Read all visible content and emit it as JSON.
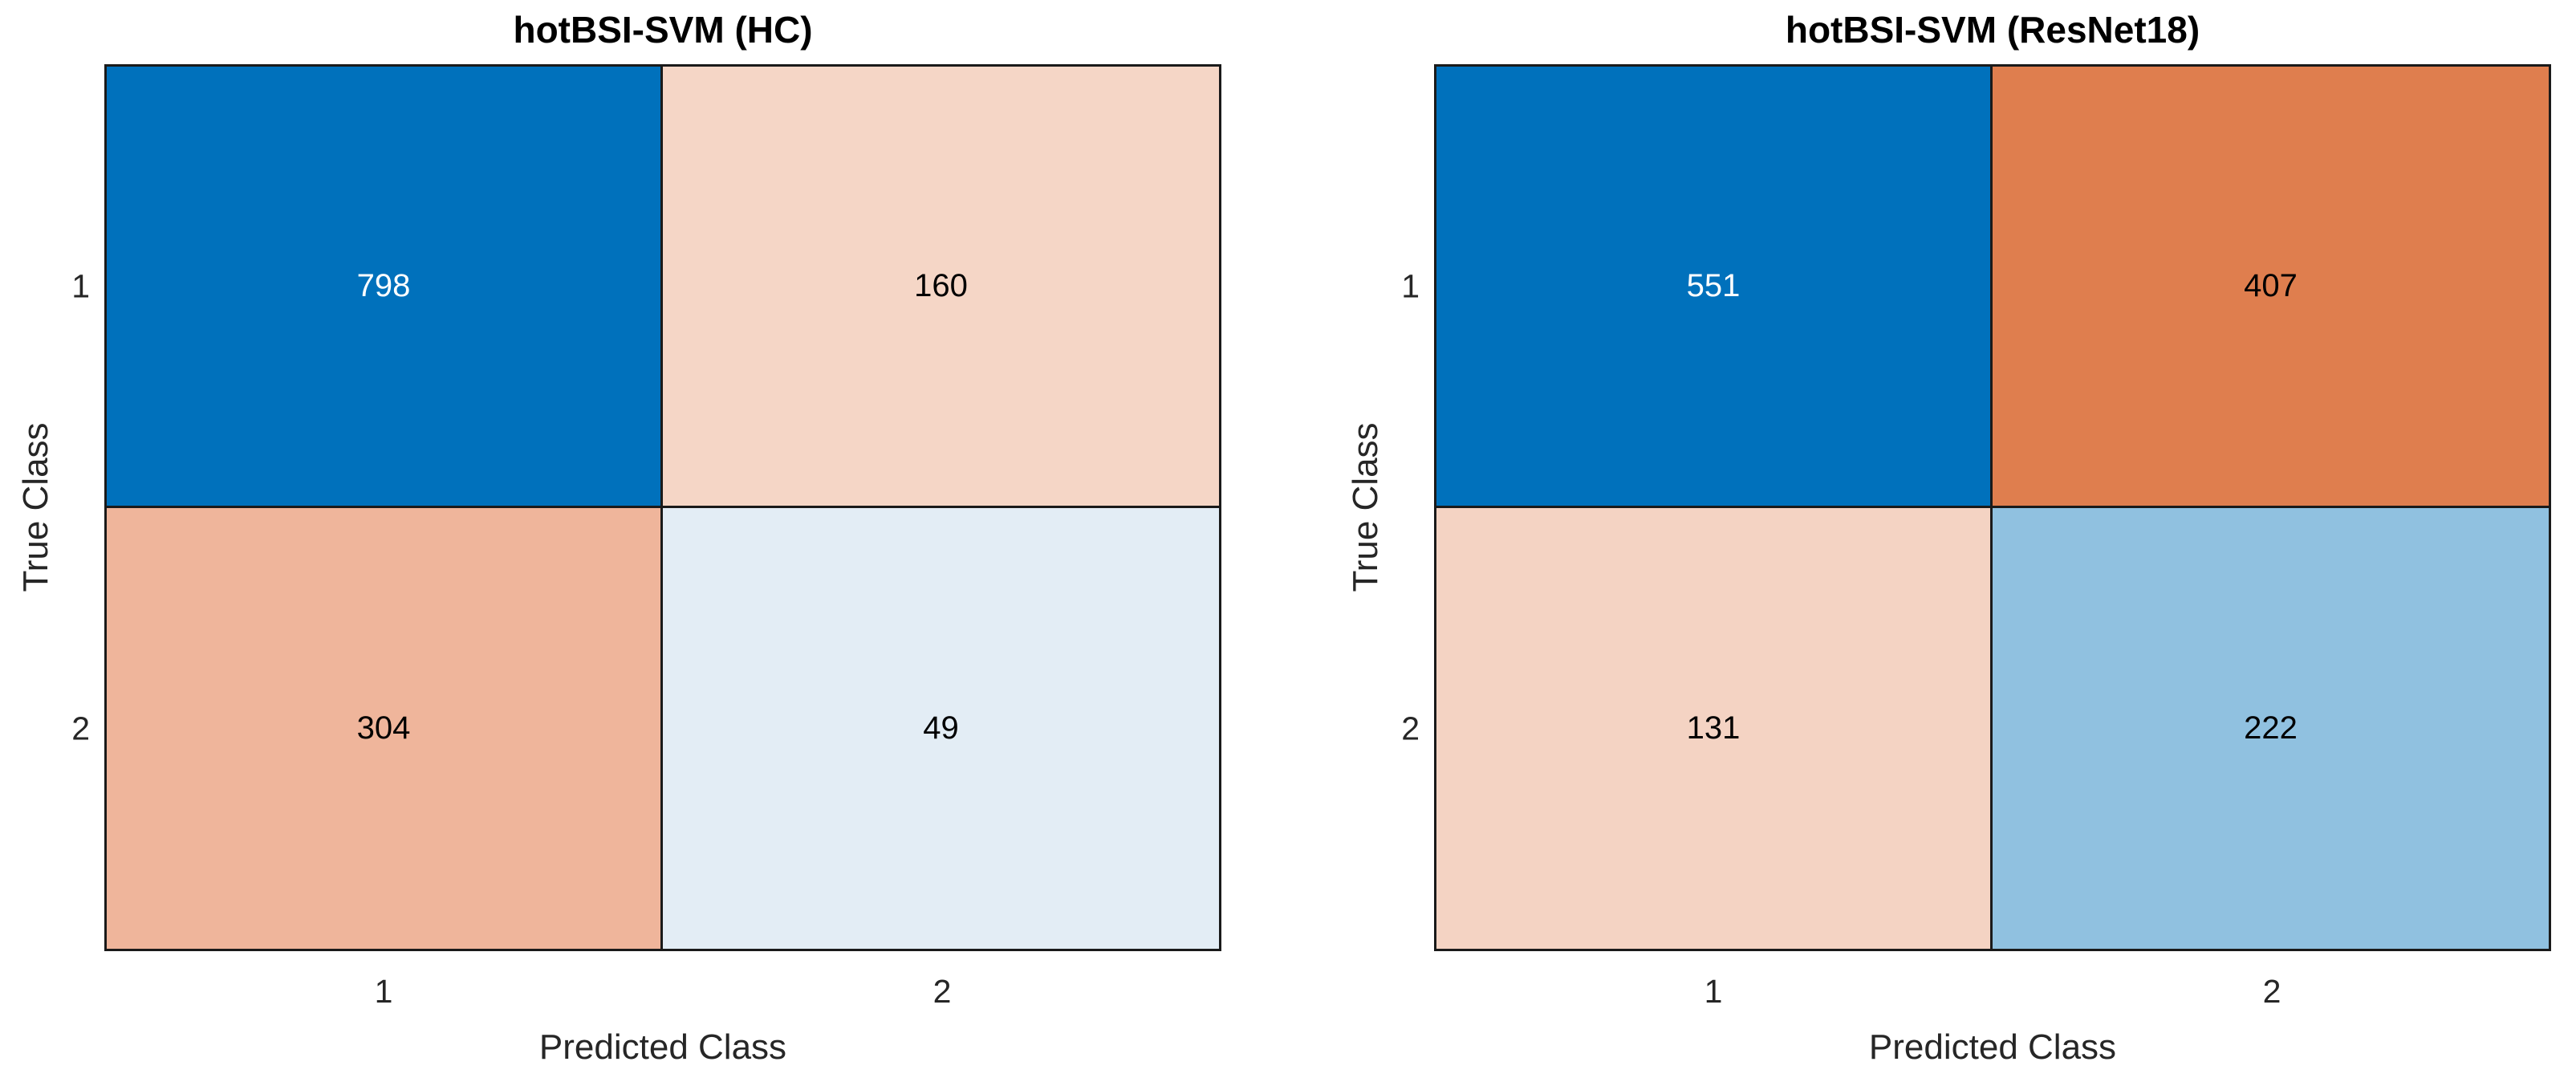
{
  "chart_data": [
    {
      "type": "heatmap",
      "title": "hotBSI-SVM (HC)",
      "xlabel": "Predicted Class",
      "ylabel": "True Class",
      "x_categories": [
        "1",
        "2"
      ],
      "y_categories": [
        "1",
        "2"
      ],
      "matrix": [
        [
          798,
          160
        ],
        [
          304,
          49
        ]
      ],
      "cell_colors": [
        [
          "#0071BC",
          "#F5D6C6"
        ],
        [
          "#EFB59B",
          "#E3EDF5"
        ]
      ],
      "cell_text_colors": [
        [
          "#FFFFFF",
          "#000000"
        ],
        [
          "#000000",
          "#000000"
        ]
      ]
    },
    {
      "type": "heatmap",
      "title": "hotBSI-SVM (ResNet18)",
      "xlabel": "Predicted Class",
      "ylabel": "True Class",
      "x_categories": [
        "1",
        "2"
      ],
      "y_categories": [
        "1",
        "2"
      ],
      "matrix": [
        [
          551,
          407
        ],
        [
          131,
          222
        ]
      ],
      "cell_colors": [
        [
          "#0071BC",
          "#DF7E4E"
        ],
        [
          "#F4D3C3",
          "#90C1E0"
        ]
      ],
      "cell_text_colors": [
        [
          "#FFFFFF",
          "#000000"
        ],
        [
          "#000000",
          "#000000"
        ]
      ]
    }
  ],
  "colors": {
    "background": "#FFFFFF",
    "border": "#1A1A1A",
    "axis_text": "#262626",
    "strong_blue": "#0071BC",
    "strong_orange": "#DF7E4E"
  }
}
